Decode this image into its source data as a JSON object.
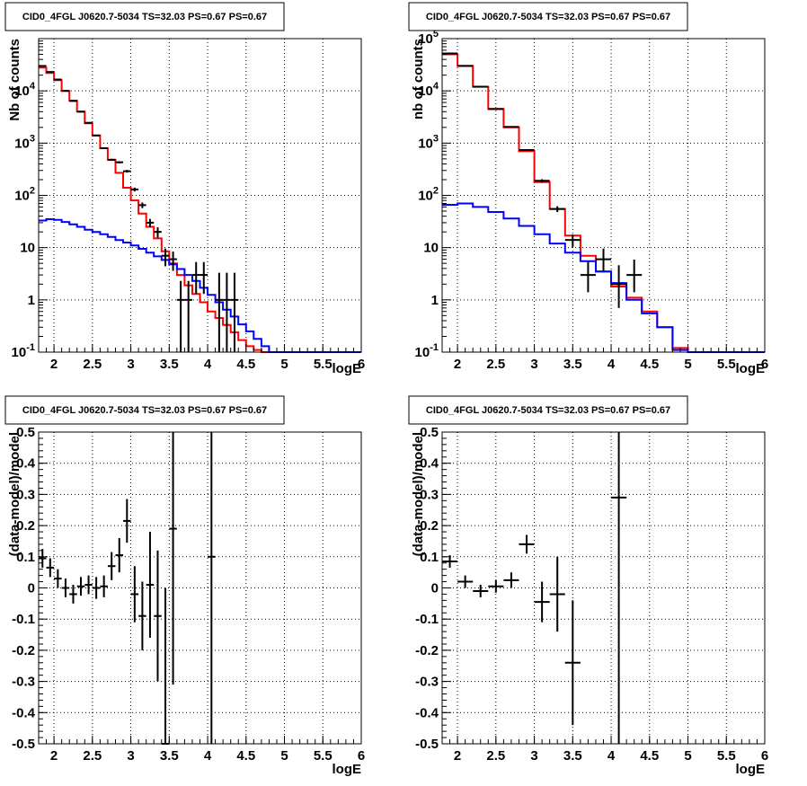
{
  "chart_data": [
    {
      "type": "step",
      "title": "CID0_4FGL J0620.7-5034 TS=32.03 PS=0.67 PS=0.67",
      "xlabel": "logE",
      "ylabel": "Nb of counts",
      "scale_y": "log",
      "xlim": [
        1.8,
        6.0
      ],
      "ylim": [
        0.1,
        100000
      ],
      "grid": true,
      "x_ticks": [
        "2",
        "2.5",
        "3",
        "3.5",
        "4",
        "4.5",
        "5",
        "5.5",
        "6"
      ],
      "y_ticks": [
        "10^-1",
        "1",
        "10",
        "10^2",
        "10^3",
        "10^4"
      ],
      "bin_width": 0.1,
      "bin_starts": [
        1.8,
        1.9,
        2.0,
        2.1,
        2.2,
        2.3,
        2.4,
        2.5,
        2.6,
        2.7,
        2.8,
        2.9,
        3.0,
        3.1,
        3.2,
        3.3,
        3.4,
        3.5,
        3.6,
        3.7,
        3.8,
        3.9,
        4.0,
        4.1,
        4.2,
        4.3,
        4.4,
        4.5,
        4.6,
        4.7,
        4.8,
        4.9,
        5.0,
        5.1,
        5.2,
        5.3,
        5.4,
        5.5,
        5.6,
        5.7,
        5.8,
        5.9
      ],
      "series": [
        {
          "name": "",
          "color": "#ff0000",
          "style": "step",
          "values": [
            28000,
            22000,
            16000,
            10000,
            6500,
            4000,
            2400,
            1400,
            800,
            480,
            270,
            140,
            80,
            45,
            25,
            15,
            8.5,
            5.0,
            3.0,
            1.9,
            1.3,
            0.9,
            0.6,
            0.45,
            0.33,
            0.24,
            0.17,
            0.13,
            0.11,
            0.1,
            0.1,
            0.1,
            0.1,
            0.1,
            0.1,
            0.1,
            0.1,
            0.1,
            0.1,
            0.1,
            0.1,
            0.1
          ]
        },
        {
          "name": "",
          "color": "#0000ff",
          "style": "step",
          "values": [
            33,
            35,
            34,
            31,
            28,
            25,
            22,
            20,
            18,
            16,
            14,
            12.5,
            11,
            9.5,
            8.0,
            6.8,
            5.8,
            4.8,
            3.9,
            3.0,
            2.3,
            1.7,
            1.25,
            0.9,
            0.65,
            0.48,
            0.34,
            0.25,
            0.18,
            0.13,
            0.1,
            0.1,
            0.1,
            0.1,
            0.1,
            0.1,
            0.1,
            0.1,
            0.1,
            0.1,
            0.1,
            0.1
          ]
        }
      ],
      "data_points": {
        "color": "#000000",
        "x": [
          1.85,
          1.95,
          2.05,
          2.15,
          2.25,
          2.35,
          2.45,
          2.55,
          2.65,
          2.75,
          2.85,
          2.95,
          3.05,
          3.15,
          3.25,
          3.35,
          3.45,
          3.55,
          3.65,
          3.75,
          3.85,
          3.95,
          4.15,
          4.25,
          4.35
        ],
        "y": [
          30000,
          23000,
          16500,
          10000,
          6400,
          4000,
          2450,
          1400,
          800,
          480,
          430,
          290,
          130,
          65,
          30,
          20,
          7,
          6,
          1,
          1,
          3,
          3,
          1,
          1,
          1
        ],
        "x_err": 0.05,
        "y_err_low": [
          170,
          150,
          130,
          100,
          80,
          63,
          50,
          37,
          28,
          22,
          21,
          17,
          11,
          8,
          5.5,
          4.5,
          2.6,
          2.4,
          0.9,
          0.9,
          1.7,
          1.7,
          0.9,
          0.9,
          0.9
        ],
        "y_err_high": [
          170,
          150,
          130,
          100,
          80,
          63,
          50,
          37,
          28,
          22,
          21,
          17,
          11,
          8,
          5.5,
          4.5,
          2.6,
          2.4,
          1.3,
          1.3,
          2.3,
          2.3,
          2.3,
          2.3,
          2.3
        ]
      }
    },
    {
      "type": "step",
      "title": "CID0_4FGL J0620.7-5034 TS=32.03 PS=0.67 PS=0.67",
      "xlabel": "logE",
      "ylabel": "nb of counts",
      "scale_y": "log",
      "xlim": [
        1.8,
        6.0
      ],
      "ylim": [
        0.1,
        100000
      ],
      "grid": true,
      "x_ticks": [
        "2",
        "2.5",
        "3",
        "3.5",
        "4",
        "4.5",
        "5",
        "5.5",
        "6"
      ],
      "y_ticks": [
        "10^-1",
        "1",
        "10",
        "10^2",
        "10^3",
        "10^4",
        "10^5"
      ],
      "bin_width": 0.2,
      "bin_starts": [
        1.8,
        2.0,
        2.2,
        2.4,
        2.6,
        2.8,
        3.0,
        3.2,
        3.4,
        3.6,
        3.8,
        4.0,
        4.2,
        4.4,
        4.6,
        4.8,
        5.0,
        5.2,
        5.4,
        5.6,
        5.8
      ],
      "series": [
        {
          "name": "",
          "color": "#ff0000",
          "style": "step",
          "values": [
            50000,
            30000,
            12000,
            4500,
            2000,
            700,
            180,
            55,
            17,
            7,
            3.5,
            1.8,
            1.1,
            0.6,
            0.3,
            0.12,
            0.1,
            0.1,
            0.1,
            0.1,
            0.1
          ]
        },
        {
          "name": "",
          "color": "#0000ff",
          "style": "step",
          "values": [
            66,
            70,
            60,
            48,
            36,
            26,
            18,
            12,
            8,
            5.5,
            3.5,
            2.1,
            1.0,
            0.55,
            0.3,
            0.11,
            0.1,
            0.1,
            0.1,
            0.1,
            0.1
          ]
        }
      ],
      "data_points": {
        "color": "#000000",
        "x": [
          1.9,
          2.1,
          2.3,
          2.5,
          2.7,
          2.9,
          3.1,
          3.3,
          3.5,
          3.7,
          3.9,
          4.1,
          4.3
        ],
        "y": [
          52000,
          30000,
          12000,
          4500,
          2050,
          740,
          190,
          55,
          14,
          3,
          6,
          2,
          3
        ],
        "x_err": 0.1,
        "y_err_low": [
          230,
          170,
          110,
          67,
          45,
          27,
          14,
          7,
          3.7,
          1.6,
          2.4,
          1.3,
          1.6
        ],
        "y_err_high": [
          230,
          170,
          110,
          67,
          45,
          27,
          14,
          7,
          3.7,
          2.4,
          3.6,
          2.6,
          2.9
        ]
      }
    },
    {
      "type": "errorbar",
      "title": "CID0_4FGL J0620.7-5034 TS=32.03 PS=0.67 PS=0.67",
      "xlabel": "logE",
      "ylabel": "(data-model)/model",
      "scale_y": "linear",
      "xlim": [
        1.8,
        6.0
      ],
      "ylim": [
        -0.5,
        0.5
      ],
      "grid": true,
      "x_ticks": [
        "2",
        "2.5",
        "3",
        "3.5",
        "4",
        "4.5",
        "5",
        "5.5",
        "6"
      ],
      "y_ticks": [
        "-0.5",
        "-0.4",
        "-0.3",
        "-0.2",
        "-0.1",
        "0",
        "0.1",
        "0.2",
        "0.3",
        "0.4",
        "0.5"
      ],
      "data_points": {
        "color": "#000000",
        "x": [
          1.85,
          1.95,
          2.05,
          2.15,
          2.25,
          2.35,
          2.45,
          2.55,
          2.65,
          2.75,
          2.85,
          2.95,
          3.05,
          3.15,
          3.25,
          3.35,
          3.45,
          3.55,
          4.05
        ],
        "y": [
          0.095,
          0.065,
          0.03,
          0.0,
          -0.02,
          0.005,
          0.01,
          0.0,
          0.005,
          0.07,
          0.105,
          0.215,
          -0.02,
          -0.09,
          0.01,
          -0.09,
          -0.5,
          0.19,
          0.1
        ],
        "x_err": 0.05,
        "y_err": [
          0.03,
          0.03,
          0.03,
          0.03,
          0.03,
          0.03,
          0.03,
          0.035,
          0.035,
          0.045,
          0.055,
          0.07,
          0.09,
          0.11,
          0.17,
          0.21,
          0.5,
          0.5,
          0.6
        ]
      }
    },
    {
      "type": "errorbar",
      "title": "CID0_4FGL J0620.7-5034 TS=32.03 PS=0.67 PS=0.67",
      "xlabel": "logE",
      "ylabel": "(data-model)/model",
      "scale_y": "linear",
      "xlim": [
        1.8,
        6.0
      ],
      "ylim": [
        -0.5,
        0.5
      ],
      "grid": true,
      "x_ticks": [
        "2",
        "2.5",
        "3",
        "3.5",
        "4",
        "4.5",
        "5",
        "5.5",
        "6"
      ],
      "y_ticks": [
        "-0.5",
        "-0.4",
        "-0.3",
        "-0.2",
        "-0.1",
        "0",
        "0.1",
        "0.2",
        "0.3",
        "0.4",
        "0.5"
      ],
      "data_points": {
        "color": "#000000",
        "x": [
          1.9,
          2.1,
          2.3,
          2.5,
          2.7,
          2.9,
          3.1,
          3.3,
          3.5,
          4.1
        ],
        "y": [
          0.085,
          0.02,
          -0.01,
          0.005,
          0.025,
          0.14,
          -0.045,
          -0.02,
          -0.24,
          0.29
        ],
        "x_err": 0.1,
        "y_err": [
          0.02,
          0.02,
          0.02,
          0.02,
          0.025,
          0.03,
          0.065,
          0.12,
          0.2,
          0.8
        ]
      }
    }
  ]
}
